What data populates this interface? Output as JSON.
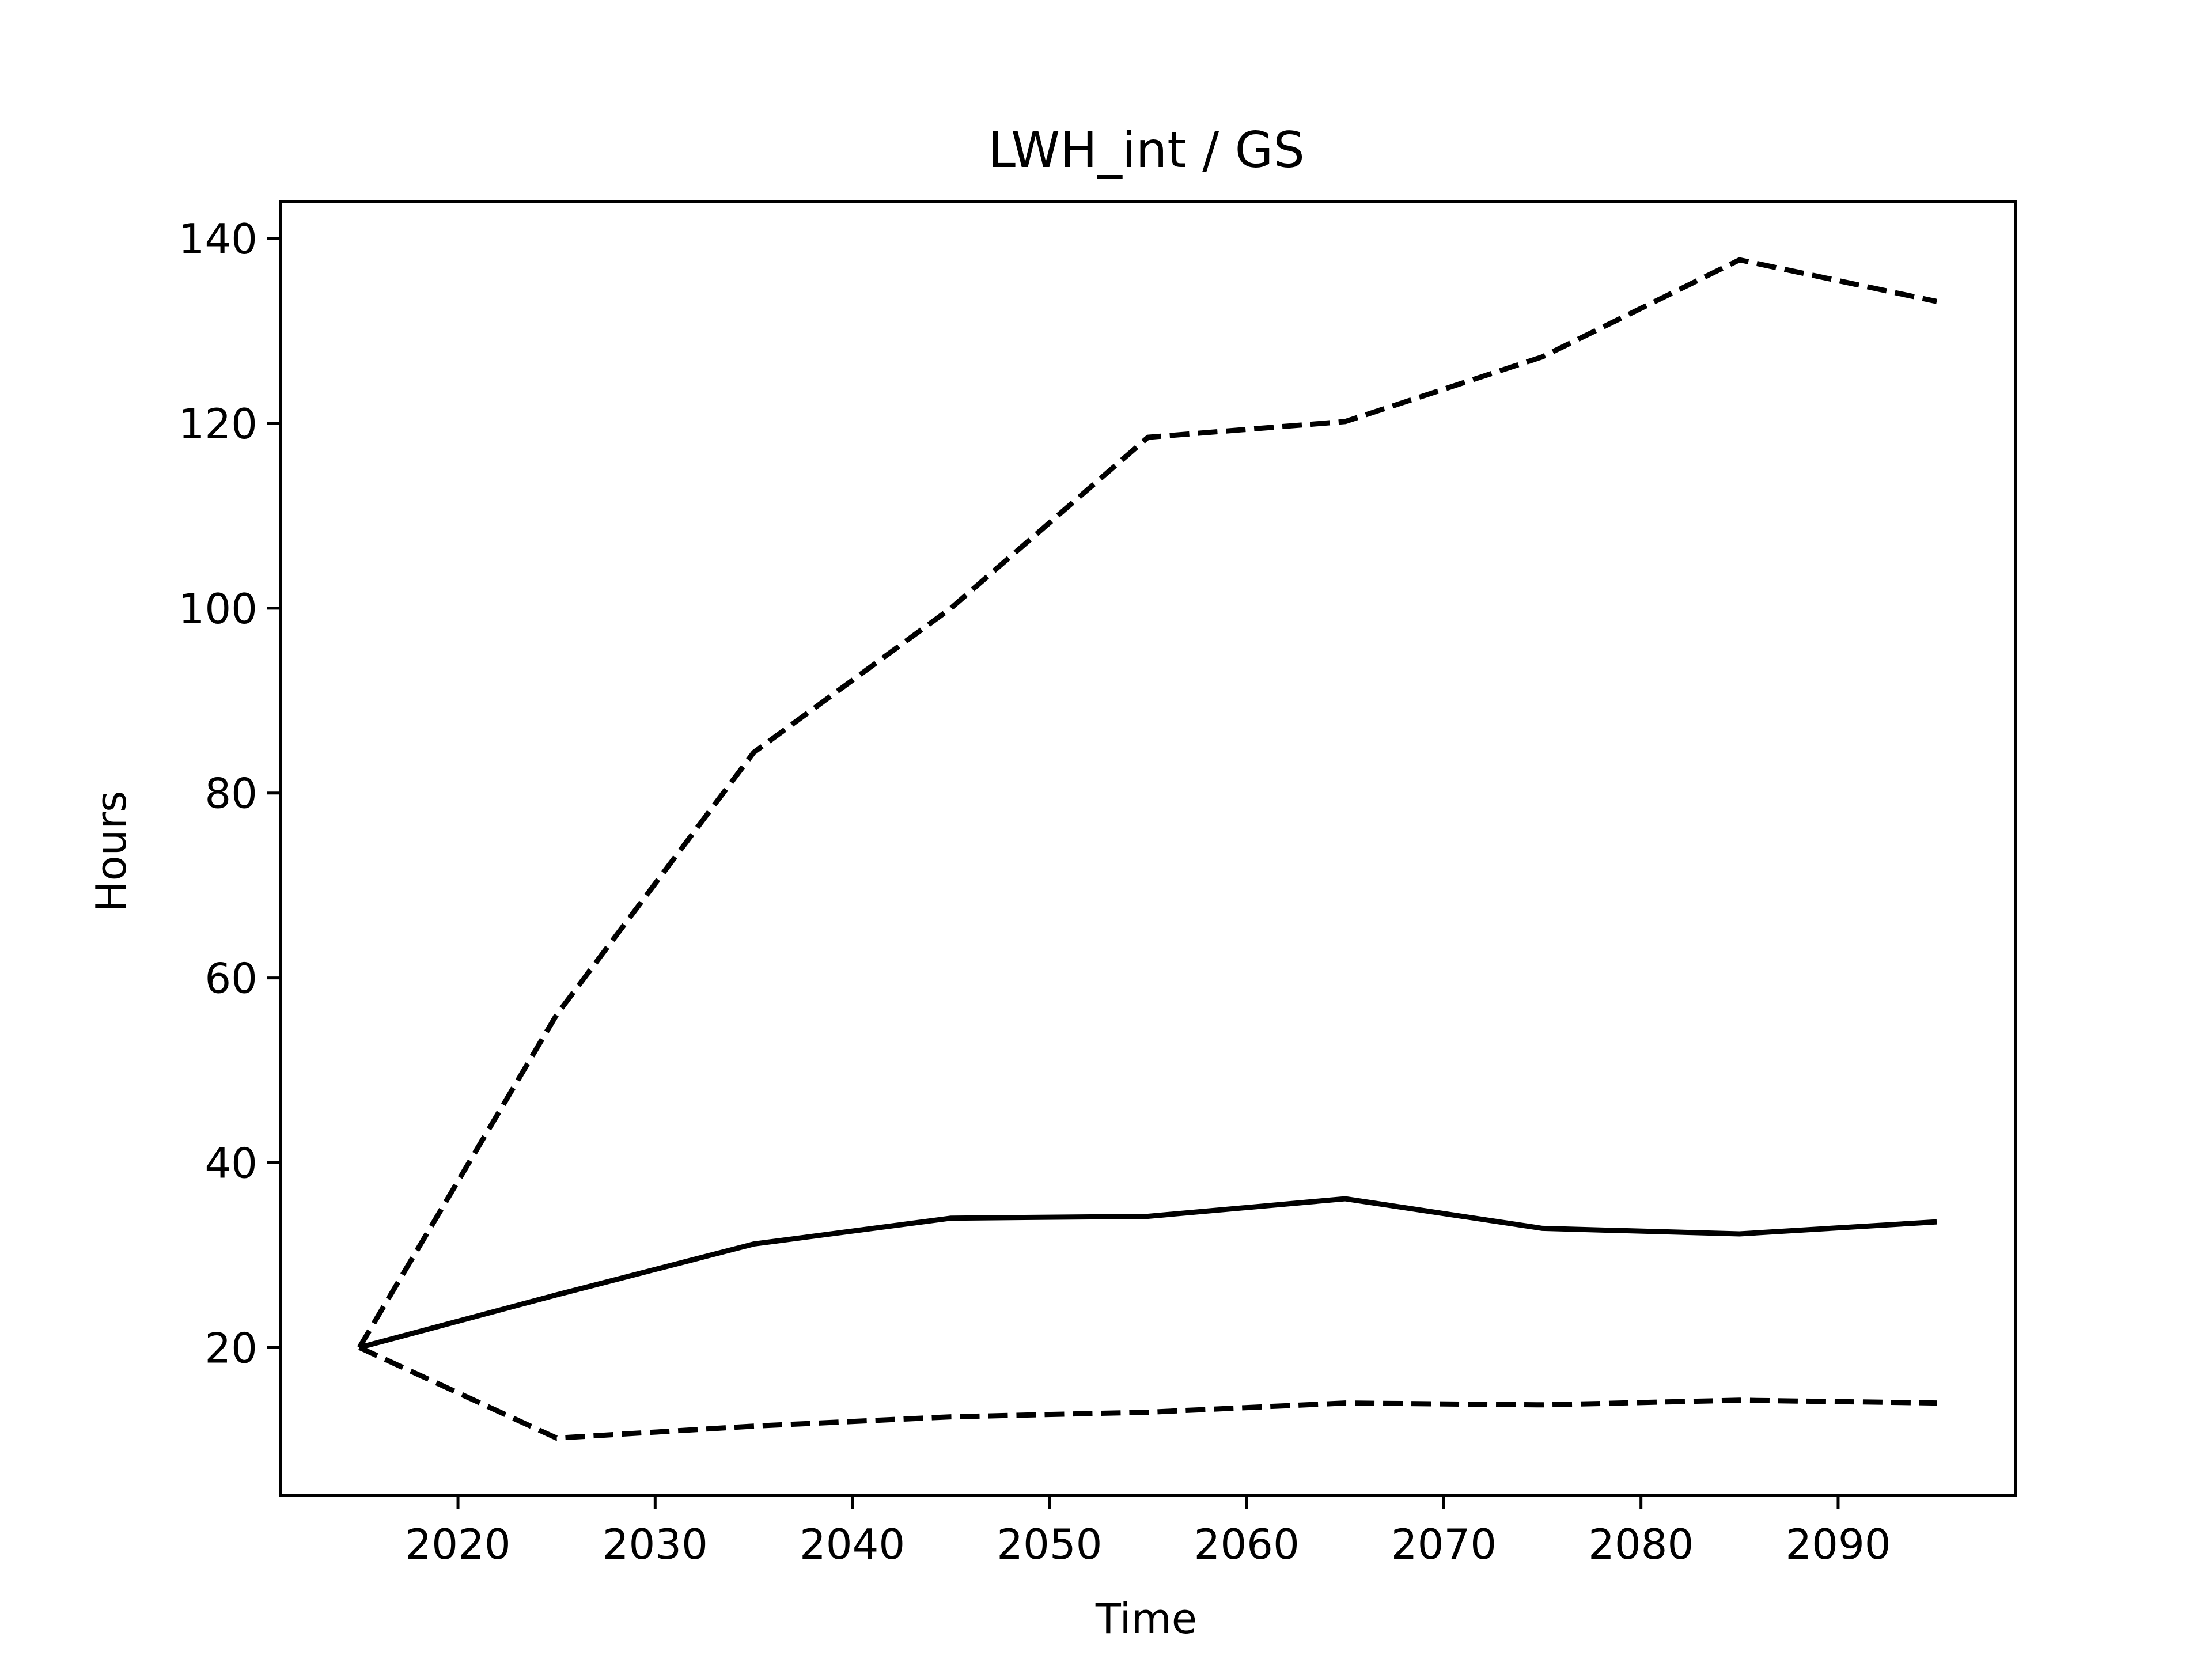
{
  "chart_data": {
    "type": "line",
    "title": "LWH_int / GS",
    "xlabel": "Time",
    "ylabel": "Hours",
    "xlim": [
      2011,
      2099
    ],
    "ylim": [
      4,
      144
    ],
    "xticks": [
      2020,
      2030,
      2040,
      2050,
      2060,
      2070,
      2080,
      2090
    ],
    "yticks": [
      20,
      40,
      60,
      80,
      100,
      120,
      140
    ],
    "grid": false,
    "legend": "none",
    "x": [
      2015,
      2025,
      2035,
      2045,
      2055,
      2065,
      2075,
      2085,
      2095
    ],
    "series": [
      {
        "style": "solid",
        "color": "#000000",
        "values": [
          20.0,
          25.7,
          31.2,
          34.0,
          34.2,
          36.1,
          32.9,
          32.3,
          33.6
        ]
      },
      {
        "style": "dashed",
        "color": "#000000",
        "values": [
          20.0,
          56.0,
          84.4,
          100.0,
          118.5,
          120.2,
          127.2,
          137.7,
          133.2
        ]
      },
      {
        "style": "dashed",
        "color": "#000000",
        "values": [
          20.0,
          10.2,
          11.5,
          12.5,
          13.0,
          14.0,
          13.8,
          14.3,
          14.0
        ]
      }
    ]
  }
}
